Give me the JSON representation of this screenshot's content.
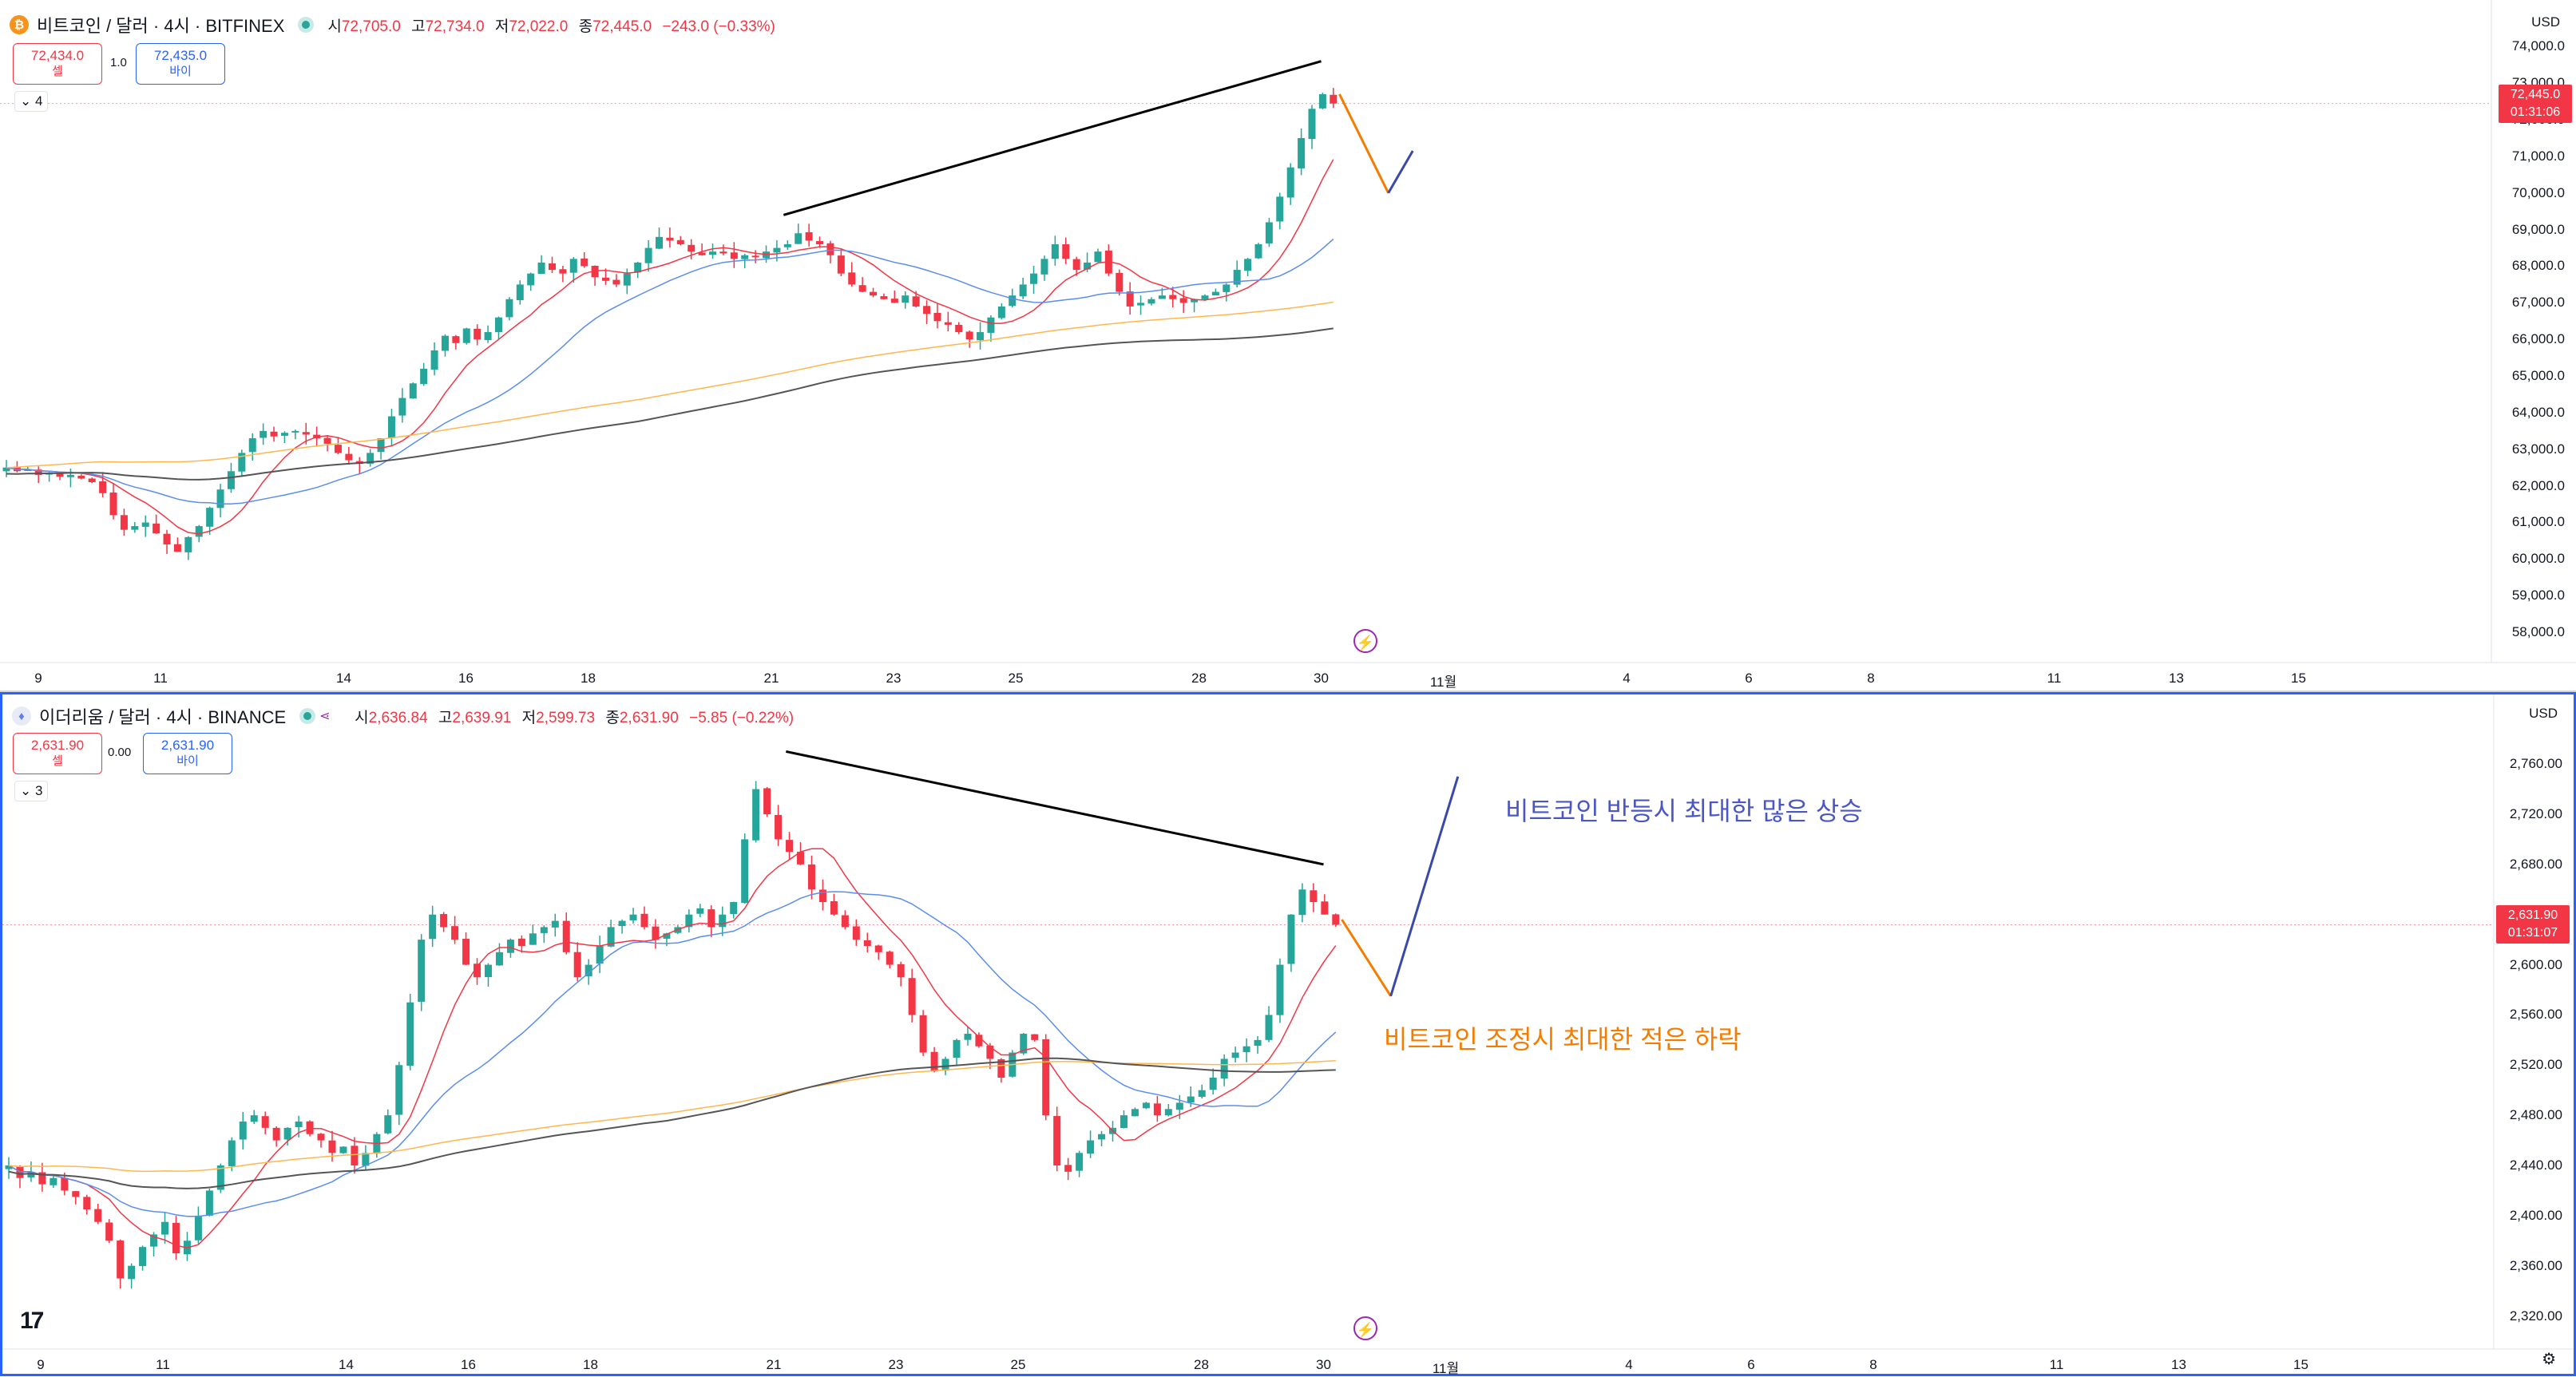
{
  "panels": [
    {
      "id": "btc",
      "coin_glyph": "₿",
      "symbol": "비트코인 / 달러 · 4시 · BITFINEX",
      "ohlc": {
        "o_label": "시",
        "o": "72,705.0",
        "h_label": "고",
        "h": "72,734.0",
        "l_label": "저",
        "l": "72,022.0",
        "c_label": "종",
        "c": "72,445.0",
        "chg": "−243.0 (−0.33%)"
      },
      "sell": {
        "price": "72,434.0",
        "label": "셀"
      },
      "buy": {
        "price": "72,435.0",
        "label": "바이"
      },
      "spread": "1.0",
      "indicators_count": "4",
      "currency": "USD",
      "last_price": "72,445.0",
      "countdown": "01:31:06",
      "y_ticks": [
        58000,
        59000,
        60000,
        61000,
        62000,
        63000,
        64000,
        65000,
        66000,
        67000,
        68000,
        69000,
        70000,
        71000,
        72000,
        73000,
        74000
      ],
      "y_tick_labels": [
        "58,000.0",
        "59,000.0",
        "60,000.0",
        "61,000.0",
        "62,000.0",
        "63,000.0",
        "64,000.0",
        "65,000.0",
        "66,000.0",
        "67,000.0",
        "68,000.0",
        "69,000.0",
        "70,000.0",
        "71,000.0",
        "72,000.0",
        "73,000.0",
        "74,000.0"
      ],
      "ylim": [
        57500,
        74400
      ]
    },
    {
      "id": "eth",
      "coin_glyph": "♦",
      "symbol": "이더리움 / 달러 · 4시 · BINANCE",
      "ohlc": {
        "o_label": "시",
        "o": "2,636.84",
        "h_label": "고",
        "h": "2,639.91",
        "l_label": "저",
        "l": "2,599.73",
        "c_label": "종",
        "c": "2,631.90",
        "chg": "−5.85 (−0.22%)"
      },
      "sell": {
        "price": "2,631.90",
        "label": "셀"
      },
      "buy": {
        "price": "2,631.90",
        "label": "바이"
      },
      "spread": "0.00",
      "indicators_count": "3",
      "currency": "USD",
      "last_price": "2,631.90",
      "countdown": "01:31:07",
      "y_ticks": [
        2320,
        2360,
        2400,
        2440,
        2480,
        2520,
        2560,
        2600,
        2640,
        2680,
        2720,
        2760
      ],
      "y_tick_labels": [
        "2,320.00",
        "2,360.00",
        "2,400.00",
        "2,440.00",
        "2,480.00",
        "2,520.00",
        "2,560.00",
        "2,600.00",
        "2,640.00",
        "2,680.00",
        "2,720.00",
        "2,760.00"
      ],
      "ylim": [
        2300,
        2790
      ]
    }
  ],
  "x_ticks": [
    {
      "label": "9",
      "day": 9
    },
    {
      "label": "11",
      "day": 11
    },
    {
      "label": "14",
      "day": 14
    },
    {
      "label": "16",
      "day": 16
    },
    {
      "label": "18",
      "day": 18
    },
    {
      "label": "21",
      "day": 21
    },
    {
      "label": "23",
      "day": 23
    },
    {
      "label": "25",
      "day": 25
    },
    {
      "label": "28",
      "day": 28
    },
    {
      "label": "30",
      "day": 30
    },
    {
      "label": "11월",
      "day": 32
    },
    {
      "label": "4",
      "day": 35
    },
    {
      "label": "6",
      "day": 37
    },
    {
      "label": "8",
      "day": 39
    },
    {
      "label": "11",
      "day": 42
    },
    {
      "label": "13",
      "day": 44
    },
    {
      "label": "15",
      "day": 46
    }
  ],
  "annotations": {
    "eth_up": "비트코인 반등시 최대한 많은 상승",
    "eth_down": "비트코인 조정시 최대한 적은 하락"
  },
  "colors": {
    "up": "#26a69a",
    "down": "#f23645",
    "ma20": "#f23645",
    "ma50": "#5b8def",
    "ma100": "#ffb74d",
    "ma200": "#555555",
    "projection_down": "#f57c00",
    "projection_up": "#3949ab",
    "note_up": "#4a56c4",
    "note_down": "#f57c00"
  },
  "chart_data": [
    {
      "type": "candlestick",
      "title": "비트코인 / 달러 · 4시 · BITFINEX",
      "x_unit": "October day (4h candles)",
      "ylim": [
        57500,
        74400
      ],
      "candles_closes": [
        62500,
        62400,
        62450,
        62300,
        62350,
        62250,
        62300,
        62200,
        62100,
        61800,
        61200,
        60800,
        60900,
        61000,
        60700,
        60400,
        60200,
        60600,
        60900,
        61400,
        61900,
        62400,
        62900,
        63300,
        63500,
        63350,
        63450,
        63500,
        63400,
        63300,
        63150,
        62900,
        62700,
        62600,
        62900,
        63300,
        63900,
        64400,
        64800,
        65200,
        65700,
        66100,
        65900,
        66300,
        66000,
        66200,
        66600,
        67100,
        67500,
        67800,
        68100,
        67900,
        67800,
        68200,
        68000,
        67700,
        67600,
        67500,
        67800,
        68100,
        68500,
        68800,
        68700,
        68600,
        68400,
        68300,
        68400,
        68350,
        68200,
        68300,
        68250,
        68400,
        68500,
        68600,
        68900,
        68700,
        68600,
        68300,
        67800,
        67500,
        67300,
        67200,
        67100,
        67000,
        67200,
        66900,
        66700,
        66500,
        66400,
        66200,
        66000,
        66200,
        66600,
        66900,
        67200,
        67500,
        67800,
        68200,
        68600,
        68200,
        67900,
        68100,
        68400,
        67800,
        67300,
        66900,
        67000,
        67100,
        67200,
        67100,
        67000,
        67100,
        67200,
        67300,
        67500,
        67900,
        68200,
        68600,
        69200,
        69900,
        70700,
        71500,
        72300,
        72700,
        72445
      ],
      "annotations": [
        "uptrend line from Oct 21 high (~69,400) to Oct 30 high (~73,600)",
        "projection: drop to ~70,000 then rebound"
      ]
    },
    {
      "type": "candlestick",
      "title": "이더리움 / 달러 · 4시 · BINANCE",
      "x_unit": "October day (4h candles)",
      "ylim": [
        2300,
        2790
      ],
      "candles_closes": [
        2440,
        2430,
        2435,
        2425,
        2430,
        2420,
        2415,
        2405,
        2395,
        2380,
        2350,
        2360,
        2375,
        2385,
        2395,
        2370,
        2380,
        2400,
        2420,
        2440,
        2460,
        2475,
        2480,
        2470,
        2460,
        2470,
        2475,
        2465,
        2460,
        2450,
        2455,
        2440,
        2450,
        2465,
        2480,
        2520,
        2570,
        2620,
        2640,
        2630,
        2620,
        2600,
        2590,
        2600,
        2610,
        2620,
        2615,
        2625,
        2630,
        2635,
        2610,
        2590,
        2600,
        2615,
        2630,
        2635,
        2640,
        2630,
        2620,
        2625,
        2630,
        2640,
        2645,
        2630,
        2640,
        2650,
        2700,
        2740,
        2720,
        2700,
        2690,
        2680,
        2660,
        2650,
        2640,
        2630,
        2620,
        2615,
        2610,
        2600,
        2590,
        2560,
        2530,
        2515,
        2525,
        2540,
        2545,
        2535,
        2525,
        2510,
        2530,
        2545,
        2540,
        2480,
        2440,
        2435,
        2450,
        2460,
        2465,
        2470,
        2480,
        2485,
        2490,
        2480,
        2485,
        2490,
        2495,
        2500,
        2510,
        2525,
        2530,
        2535,
        2540,
        2560,
        2600,
        2640,
        2660,
        2650,
        2640,
        2631.9
      ],
      "annotations": [
        "downtrend line from Oct 21 high (~2,770) to Oct 30 high (~2,680)",
        "projection: dip to ~2,575 then surge to ~2,750"
      ]
    }
  ]
}
